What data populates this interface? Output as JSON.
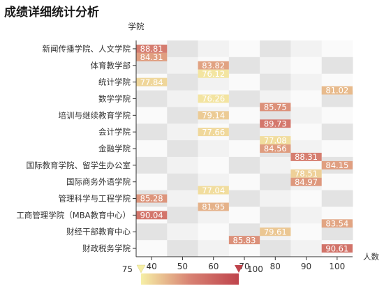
{
  "title": "成绩详细统计分析",
  "chart_data": {
    "type": "heatmap",
    "title": "成绩详细统计分析",
    "y_axis_name": "学院",
    "x_axis_name": "人数",
    "x_categories": [
      "40",
      "50",
      "60",
      "70",
      "80",
      "90",
      "100"
    ],
    "y_categories": [
      "新闻传播学院、人文学院",
      "体育教学部",
      "统计学院",
      "数学学院",
      "培训与继续教育学院",
      "会计学院",
      "金融学院",
      "国际教育学院、留学生办公室",
      "国际商务外语学院",
      "管理科学与工程学院",
      "工商管理学院（MBA教育中心）",
      "财经干部教育中心",
      "财政税务学院"
    ],
    "cells": [
      {
        "x": "40",
        "pos": 0.0,
        "value": 88.81
      },
      {
        "x": "40",
        "pos": 0.5,
        "value": 84.31
      },
      {
        "x": "60",
        "pos": 1.0,
        "value": 83.82
      },
      {
        "x": "60",
        "pos": 1.5,
        "value": 76.12
      },
      {
        "x": "40",
        "pos": 2.0,
        "value": 77.84
      },
      {
        "x": "100",
        "pos": 2.5,
        "value": 81.02
      },
      {
        "x": "60",
        "pos": 3.0,
        "value": 76.26
      },
      {
        "x": "80",
        "pos": 3.5,
        "value": 85.75
      },
      {
        "x": "60",
        "pos": 4.0,
        "value": 79.14
      },
      {
        "x": "80",
        "pos": 4.5,
        "value": 89.73
      },
      {
        "x": "60",
        "pos": 5.0,
        "value": 77.66
      },
      {
        "x": "80",
        "pos": 5.5,
        "value": 77.08
      },
      {
        "x": "80",
        "pos": 6.0,
        "value": 84.56
      },
      {
        "x": "90",
        "pos": 6.5,
        "value": 88.31
      },
      {
        "x": "100",
        "pos": 7.0,
        "value": 84.15
      },
      {
        "x": "90",
        "pos": 7.5,
        "value": 78.51
      },
      {
        "x": "90",
        "pos": 8.0,
        "value": 84.97
      },
      {
        "x": "60",
        "pos": 8.5,
        "value": 77.04
      },
      {
        "x": "40",
        "pos": 9.0,
        "value": 85.28
      },
      {
        "x": "60",
        "pos": 9.5,
        "value": 81.95
      },
      {
        "x": "40",
        "pos": 10.0,
        "value": 90.04
      },
      {
        "x": "100",
        "pos": 10.5,
        "value": 83.54
      },
      {
        "x": "80",
        "pos": 11.0,
        "value": 79.61
      },
      {
        "x": "70",
        "pos": 11.5,
        "value": 85.83
      },
      {
        "x": "100",
        "pos": 12.0,
        "value": 90.61
      }
    ],
    "visual_map": {
      "min": 75,
      "max": 100,
      "min_label": "75",
      "max_label": "100",
      "colors": [
        "#f6efa6",
        "#d88273",
        "#bf444c"
      ]
    },
    "split_area_colors": [
      "#fafafa",
      "#e3e3e3",
      "#f2f2f2"
    ],
    "grid": false,
    "legend": "bottom-left"
  }
}
